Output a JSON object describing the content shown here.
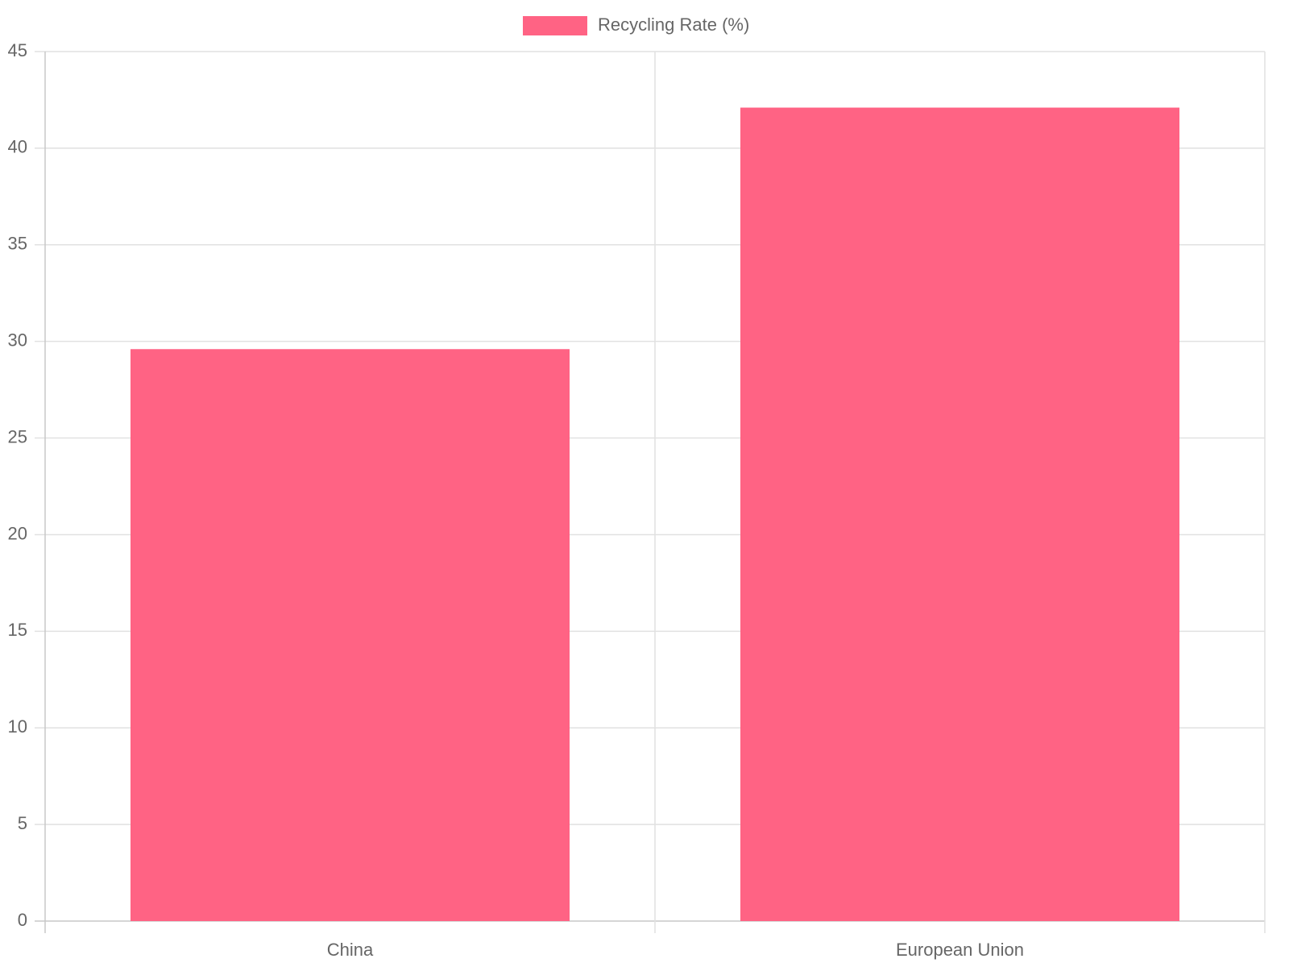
{
  "chart_data": {
    "type": "bar",
    "categories": [
      "China",
      "European Union"
    ],
    "series": [
      {
        "name": "Recycling Rate (%)",
        "color": "#ff6384",
        "values": [
          29.6,
          42.1
        ]
      }
    ],
    "ylim": [
      0,
      45
    ],
    "yticks": [
      0,
      5,
      10,
      15,
      20,
      25,
      30,
      35,
      40,
      45
    ],
    "grid": true,
    "legend": "top"
  }
}
